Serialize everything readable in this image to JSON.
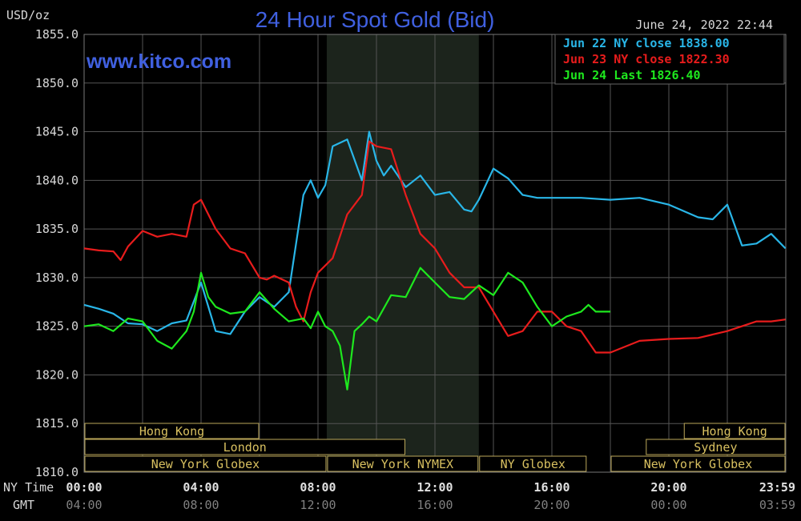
{
  "chart_data": {
    "type": "line",
    "title": "24 Hour Spot Gold (Bid)",
    "watermark": "www.kitco.com",
    "timestamp": "June 24, 2022 22:44",
    "ylabel": "USD/oz",
    "ylim": [
      1810,
      1855
    ],
    "y_ticks": [
      "1855.0",
      "1850.0",
      "1845.0",
      "1840.0",
      "1835.0",
      "1830.0",
      "1825.0",
      "1820.0",
      "1815.0",
      "1810.0"
    ],
    "x_range_ny_hours": [
      0,
      24
    ],
    "x_ticks_ny": [
      "00:00",
      "04:00",
      "08:00",
      "12:00",
      "16:00",
      "20:00",
      "23:59"
    ],
    "x_ticks_gmt": [
      "04:00",
      "08:00",
      "12:00",
      "16:00",
      "20:00",
      "00:00",
      "03:59"
    ],
    "x_axis_label_ny": "NY Time",
    "x_axis_label_gmt": "GMT",
    "shaded_session_ny_hours": [
      8.3,
      13.5
    ],
    "grid": true,
    "legend_placement": "top-right",
    "series": [
      {
        "name": "Jun 22 NY close 1838.00",
        "color": "#29b6e8",
        "x": [
          0,
          0.5,
          1,
          1.5,
          2,
          2.5,
          3,
          3.5,
          4,
          4.5,
          5,
          5.5,
          6,
          6.5,
          7,
          7.5,
          7.75,
          8,
          8.25,
          8.5,
          9,
          9.5,
          9.75,
          10,
          10.25,
          10.5,
          11,
          11.5,
          12,
          12.5,
          13,
          13.25,
          13.5,
          14,
          14.5,
          15,
          15.5,
          16,
          17,
          18,
          19,
          20,
          21,
          21.5,
          22,
          22.5,
          23,
          23.5,
          23.99
        ],
        "values": [
          1827.2,
          1826.8,
          1826.3,
          1825.3,
          1825.2,
          1824.5,
          1825.3,
          1825.6,
          1829.5,
          1824.5,
          1824.2,
          1826.5,
          1828.0,
          1827.0,
          1828.5,
          1838.5,
          1840.0,
          1838.2,
          1839.5,
          1843.5,
          1844.2,
          1840.0,
          1845.0,
          1842.0,
          1840.5,
          1841.5,
          1839.3,
          1840.5,
          1838.5,
          1838.8,
          1837.0,
          1836.8,
          1838.0,
          1841.2,
          1840.2,
          1838.5,
          1838.2,
          1838.2,
          1838.2,
          1838.0,
          1838.2,
          1837.5,
          1836.2,
          1836.0,
          1837.5,
          1833.3,
          1833.5,
          1834.5,
          1833.0
        ]
      },
      {
        "name": "Jun 23 NY close 1822.30",
        "color": "#e81c1c",
        "x": [
          0,
          0.5,
          1,
          1.25,
          1.5,
          2,
          2.5,
          3,
          3.5,
          3.75,
          4,
          4.25,
          4.5,
          5,
          5.5,
          6,
          6.25,
          6.5,
          7,
          7.25,
          7.5,
          7.75,
          8,
          8.5,
          9,
          9.5,
          9.75,
          10,
          10.5,
          11,
          11.5,
          12,
          12.5,
          13,
          13.5,
          14,
          14.5,
          15,
          15.5,
          16,
          16.5,
          17,
          17.5,
          18,
          19,
          20,
          21,
          22,
          23,
          23.5,
          23.99
        ],
        "values": [
          1833.0,
          1832.8,
          1832.7,
          1831.8,
          1833.2,
          1834.8,
          1834.2,
          1834.5,
          1834.2,
          1837.5,
          1838.0,
          1836.5,
          1835.0,
          1833.0,
          1832.5,
          1830.0,
          1829.8,
          1830.2,
          1829.5,
          1827.0,
          1825.5,
          1828.5,
          1830.5,
          1832.0,
          1836.5,
          1838.5,
          1844.0,
          1843.5,
          1843.2,
          1838.5,
          1834.5,
          1833.0,
          1830.5,
          1829.0,
          1829.0,
          1826.5,
          1824.0,
          1824.5,
          1826.5,
          1826.5,
          1825.0,
          1824.5,
          1822.3,
          1822.3,
          1823.5,
          1823.7,
          1823.8,
          1824.5,
          1825.5,
          1825.5,
          1825.7
        ]
      },
      {
        "name": "Jun 24 Last 1826.40",
        "color": "#1ee81e",
        "x": [
          0,
          0.5,
          1,
          1.5,
          2,
          2.5,
          3,
          3.5,
          3.75,
          4,
          4.25,
          4.5,
          5,
          5.5,
          6,
          6.5,
          7,
          7.5,
          7.75,
          8,
          8.25,
          8.5,
          8.75,
          9,
          9.25,
          9.5,
          9.75,
          10,
          10.5,
          11,
          11.5,
          12,
          12.5,
          13,
          13.25,
          13.5,
          14,
          14.5,
          15,
          15.5,
          16,
          16.5,
          17,
          17.25,
          17.5,
          17.75,
          18
        ],
        "values": [
          1825.0,
          1825.2,
          1824.5,
          1825.8,
          1825.5,
          1823.5,
          1822.7,
          1824.5,
          1826.5,
          1830.5,
          1828.0,
          1827.0,
          1826.3,
          1826.5,
          1828.5,
          1826.8,
          1825.5,
          1825.8,
          1824.8,
          1826.5,
          1825.0,
          1824.5,
          1823.0,
          1818.5,
          1824.5,
          1825.2,
          1826.0,
          1825.5,
          1828.2,
          1828.0,
          1831.0,
          1829.5,
          1828.0,
          1827.8,
          1828.5,
          1829.2,
          1828.2,
          1830.5,
          1829.5,
          1827.0,
          1825.0,
          1826.0,
          1826.5,
          1827.2,
          1826.5,
          1826.5,
          1826.5
        ]
      }
    ],
    "session_bars": [
      {
        "label": "Hong Kong",
        "row": 0,
        "start_hours": 0,
        "end_hours": 6
      },
      {
        "label": "Hong Kong",
        "row": 0,
        "start_hours": 20.5,
        "end_hours": 24
      },
      {
        "label": "London",
        "row": 1,
        "start_hours": 0,
        "end_hours": 11
      },
      {
        "label": "Sydney",
        "row": 1,
        "start_hours": 19.2,
        "end_hours": 24
      },
      {
        "label": "New York Globex",
        "row": 2,
        "start_hours": 0,
        "end_hours": 8.3
      },
      {
        "label": "New York NYMEX",
        "row": 2,
        "start_hours": 8.3,
        "end_hours": 13.5
      },
      {
        "label": "NY Globex",
        "row": 2,
        "start_hours": 13.5,
        "end_hours": 17.2
      },
      {
        "label": "New York Globex",
        "row": 2,
        "start_hours": 18,
        "end_hours": 24
      }
    ],
    "colors": {
      "background": "#000000",
      "grid": "#555555",
      "axis_text": "#d8d8d8",
      "title": "#4060e0",
      "shaded_session": "#1c241c",
      "session_text": "#d8c060",
      "session_border": "#bca85a"
    }
  }
}
